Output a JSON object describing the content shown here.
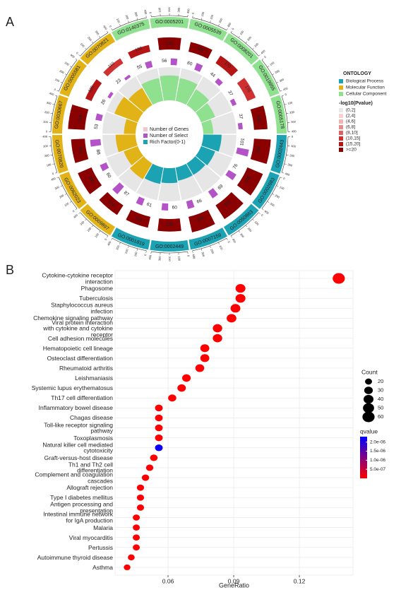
{
  "chart_data": [
    {
      "type": "circular",
      "panel": "A",
      "categories": [
        "GO:0005201",
        "GO:0005539",
        "GO:0008201",
        "GO:0019955",
        "GO:0005178",
        "GO:0002443",
        "GO:0002683",
        "GO:0050863",
        "GO:0007159",
        "GO:0002449",
        "GO:0001819",
        "GO:0009897",
        "GO:0062023",
        "GO:0070820",
        "GO:0030667",
        "GO:0005581",
        "GO:0070821",
        "GO:0140375"
      ],
      "ontology": [
        "Cellular Component",
        "Cellular Component",
        "Cellular Component",
        "Cellular Component",
        "Cellular Component",
        "Biological Process",
        "Biological Process",
        "Biological Process",
        "Biological Process",
        "Biological Process",
        "Biological Process",
        "Molecular Function",
        "Molecular Function",
        "Molecular Function",
        "Molecular Function",
        "Molecular Function",
        "Molecular Function",
        "Cellular Component"
      ],
      "genes": [
        228,
        186,
        170,
        170,
        255,
        318,
        318,
        310,
        300,
        236,
        210,
        216,
        280,
        260,
        318,
        125,
        110,
        130
      ],
      "select": [
        56,
        60,
        44,
        37,
        37,
        101,
        76,
        69,
        66,
        60,
        61,
        87,
        60,
        88,
        53,
        26,
        23,
        55
      ],
      "rich_factor": [
        0.75,
        0.7,
        0.55,
        0.45,
        0.3,
        0.55,
        0.45,
        0.4,
        0.4,
        0.45,
        0.5,
        0.55,
        0.45,
        0.6,
        0.35,
        0.75,
        0.6,
        0.7
      ],
      "neg_log10_p": [
        25,
        24,
        16,
        14,
        22,
        40,
        35,
        32,
        30,
        28,
        26,
        30,
        28,
        24,
        30,
        16,
        14,
        18
      ],
      "genes_lim": [
        0,
        400
      ],
      "gene_axis_ticks": [
        0,
        100,
        200,
        300,
        400
      ],
      "select_lim": [
        0,
        120
      ],
      "rich_lim": [
        0,
        1
      ],
      "ontology_title": "ONTOLOGY",
      "ontology_legend": [
        {
          "name": "Biological Process",
          "color": "#1ba3b4"
        },
        {
          "name": "Molecular Function",
          "color": "#e2b317"
        },
        {
          "name": "Cellular Component",
          "color": "#8fe08f"
        }
      ],
      "p_title": "-log10(Pvalue)",
      "p_breaks": [
        2,
        4,
        6,
        8,
        10,
        15,
        20
      ],
      "p_bins": [
        {
          "label": "(0,2]",
          "color": "#ebe6e6"
        },
        {
          "label": "(2,4]",
          "color": "#f4d2d2"
        },
        {
          "label": "(4,6]",
          "color": "#f2b3b3"
        },
        {
          "label": "(6,8]",
          "color": "#eb8a8a"
        },
        {
          "label": "(8,10]",
          "color": "#e06060"
        },
        {
          "label": "(10,15]",
          "color": "#cf3030"
        },
        {
          "label": "(15,20]",
          "color": "#b51515"
        },
        {
          "label": ">=20",
          "color": "#8b0000"
        }
      ],
      "inner_legend": [
        {
          "name": "Number of Genes",
          "color": "#f4c6d0"
        },
        {
          "name": "Number of Select",
          "color": "#b452c8"
        },
        {
          "name": "Rich Factor(0-1)",
          "color": "#1ba3b4"
        }
      ]
    },
    {
      "type": "dot",
      "panel": "B",
      "categories": [
        "Cytokine-cytokine receptor\ninteraction",
        "Phagosome",
        "Tuberculosis",
        "Staphylococcus aureus\ninfection",
        "Chemokine signaling pathway",
        "Viral protein interaction\nwith cytokine and cytokine\nreceptor",
        "Cell adhesion molecules",
        "Hematopoietic cell lineage",
        "Osteoclast differentiation",
        "Rheumatoid arthritis",
        "Leishmaniasis",
        "Systemic lupus erythematosus",
        "Th17 cell differentiation",
        "Inflammatory bowel disease",
        "Chagas disease",
        "Toll-like receptor signaling\npathway",
        "Toxoplasmosis",
        "Natural killer cell mediated\ncytotoxicity",
        "Graft-versus-host disease",
        "Th1 and Th2 cell\ndifferentiation",
        "Complement and coagulation\ncascades",
        "Allograft rejection",
        "Type I diabetes mellitus",
        "Antigen processing and\npresentation",
        "Intestinal immune network\nfor IgA production",
        "Malaria",
        "Viral myocarditis",
        "Pertussis",
        "Autoimmune thyroid disease",
        "Asthma"
      ],
      "x": [
        0.138,
        0.0931,
        0.0931,
        0.0908,
        0.089,
        0.0826,
        0.0826,
        0.0768,
        0.0768,
        0.0745,
        0.0684,
        0.0662,
        0.0619,
        0.0558,
        0.0558,
        0.0558,
        0.0558,
        0.0558,
        0.0535,
        0.0516,
        0.0497,
        0.0474,
        0.0474,
        0.0474,
        0.0455,
        0.0455,
        0.0455,
        0.0455,
        0.0432,
        0.0413
      ],
      "count": [
        60,
        40,
        40,
        39,
        38,
        36,
        36,
        33,
        33,
        32,
        30,
        29,
        27,
        24,
        24,
        24,
        24,
        24,
        23,
        22,
        22,
        21,
        21,
        21,
        20,
        20,
        20,
        20,
        19,
        18
      ],
      "qvalue": [
        1e-20,
        1e-15,
        1e-15,
        1e-14,
        1e-14,
        1e-13,
        1e-13,
        1e-12,
        1e-12,
        1e-12,
        1e-11,
        1e-11,
        1e-10,
        1e-09,
        1e-09,
        1e-09,
        1e-09,
        2.2e-06,
        1e-09,
        1e-09,
        1e-08,
        1e-08,
        1e-08,
        1e-08,
        1e-08,
        1e-08,
        1e-08,
        1e-08,
        1e-08,
        1e-08
      ],
      "xlim": [
        0.0358,
        0.1445
      ],
      "xticks": [
        0.06,
        0.09,
        0.12
      ],
      "xlabel": "GeneRatio",
      "grid": true,
      "size_title": "Count",
      "size_ticks": [
        20,
        30,
        40,
        50,
        60
      ],
      "color_title": "qvalue",
      "qlim": [
        0,
        2.3e-06
      ],
      "color_low": "#ff0000",
      "color_high": "#0000ff",
      "qticks": [
        {
          "value": 2e-06,
          "label": "2.0e-06"
        },
        {
          "value": 1.5e-06,
          "label": "1.5e-06"
        },
        {
          "value": 1e-06,
          "label": "1.0e-06"
        },
        {
          "value": 5e-07,
          "label": "5.0e-07"
        }
      ]
    }
  ]
}
